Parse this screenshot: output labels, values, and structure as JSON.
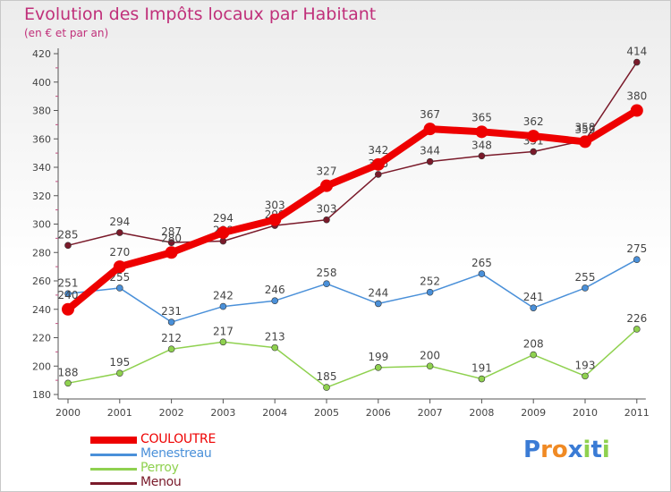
{
  "chart_data": {
    "type": "line",
    "title": "Evolution des Impôts locaux par Habitant",
    "subtitle": "(en € et par an)",
    "xlabel": "",
    "ylabel": "",
    "categories": [
      "2000",
      "2001",
      "2002",
      "2003",
      "2004",
      "2005",
      "2006",
      "2007",
      "2008",
      "2009",
      "2010",
      "2011"
    ],
    "ylim": [
      180,
      420
    ],
    "yticks": [
      180,
      200,
      220,
      240,
      260,
      280,
      300,
      320,
      340,
      360,
      380,
      400,
      420
    ],
    "grid": false,
    "legend_position": "bottom-left",
    "series": [
      {
        "name": "COULOUTRE",
        "color": "#ee0000",
        "values": [
          240,
          270,
          280,
          294,
          303,
          327,
          342,
          367,
          365,
          362,
          358,
          380
        ]
      },
      {
        "name": "Menestreau",
        "color": "#4a90d9",
        "values": [
          251,
          255,
          231,
          242,
          246,
          258,
          244,
          252,
          265,
          241,
          255,
          275
        ]
      },
      {
        "name": "Perroy",
        "color": "#8fd14f",
        "values": [
          188,
          195,
          212,
          217,
          213,
          185,
          199,
          200,
          191,
          208,
          193,
          226
        ]
      },
      {
        "name": "Menou",
        "color": "#7a1a2a",
        "values": [
          285,
          294,
          287,
          288,
          299,
          303,
          335,
          344,
          348,
          351,
          359,
          414
        ]
      }
    ]
  },
  "logo": {
    "text": "Proxiti",
    "letter_colors": [
      "#3a7bd5",
      "#f08a24",
      "#f08a24",
      "#3a7bd5",
      "#8fd14f",
      "#3a7bd5",
      "#8fd14f"
    ]
  }
}
